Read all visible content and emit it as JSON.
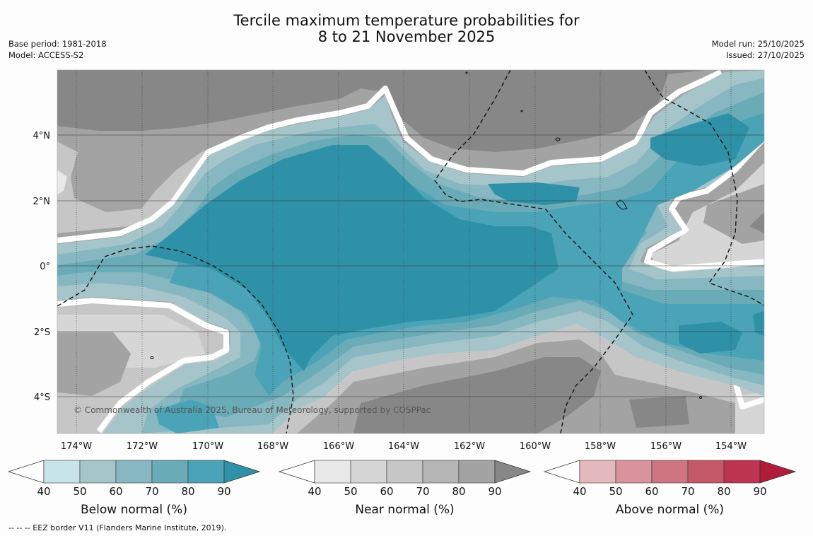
{
  "title": {
    "line1": "Tercile maximum temperature probabilities for",
    "line2": "8 to 21 November 2025"
  },
  "meta_left": {
    "base_period": "Base period: 1981-2018",
    "model": "Model: ACCESS-S2"
  },
  "meta_right": {
    "model_run": "Model run: 25/10/2025",
    "issued": "Issued: 27/10/2025"
  },
  "map": {
    "lon_range": [
      -174.6,
      -153.0
    ],
    "lat_range": [
      -5.2,
      5.9
    ],
    "lon_ticks": [
      "174°W",
      "172°W",
      "170°W",
      "168°W",
      "166°W",
      "164°W",
      "162°W",
      "160°W",
      "158°W",
      "156°W",
      "154°W"
    ],
    "lat_ticks": [
      "4°N",
      "2°N",
      "0°",
      "2°S",
      "4°S"
    ],
    "copyright": "© Commonwealth of Australia 2025, Bureau of Meteorology, supported by COSPPac"
  },
  "colorbars": [
    {
      "label": "Below normal (%)",
      "ticks": [
        "40",
        "50",
        "60",
        "70",
        "80",
        "90"
      ],
      "colors": [
        "#c9e3ea",
        "#a6c5ca",
        "#87b7c0",
        "#6aabb8",
        "#4aa3b6",
        "#2f91a8"
      ]
    },
    {
      "label": "Near normal (%)",
      "ticks": [
        "40",
        "50",
        "60",
        "70",
        "80",
        "90"
      ],
      "colors": [
        "#e8e8e8",
        "#d6d6d6",
        "#c6c6c6",
        "#b5b5b5",
        "#a3a3a3",
        "#878787"
      ]
    },
    {
      "label": "Above normal (%)",
      "ticks": [
        "40",
        "50",
        "60",
        "70",
        "80",
        "90"
      ],
      "colors": [
        "#e3b9be",
        "#d9939b",
        "#cd7580",
        "#c45a69",
        "#bd3550",
        "#b01c3a"
      ]
    }
  ],
  "footnote": "--  --  -- EEZ border V11 (Flanders Marine Institute, 2019)."
}
